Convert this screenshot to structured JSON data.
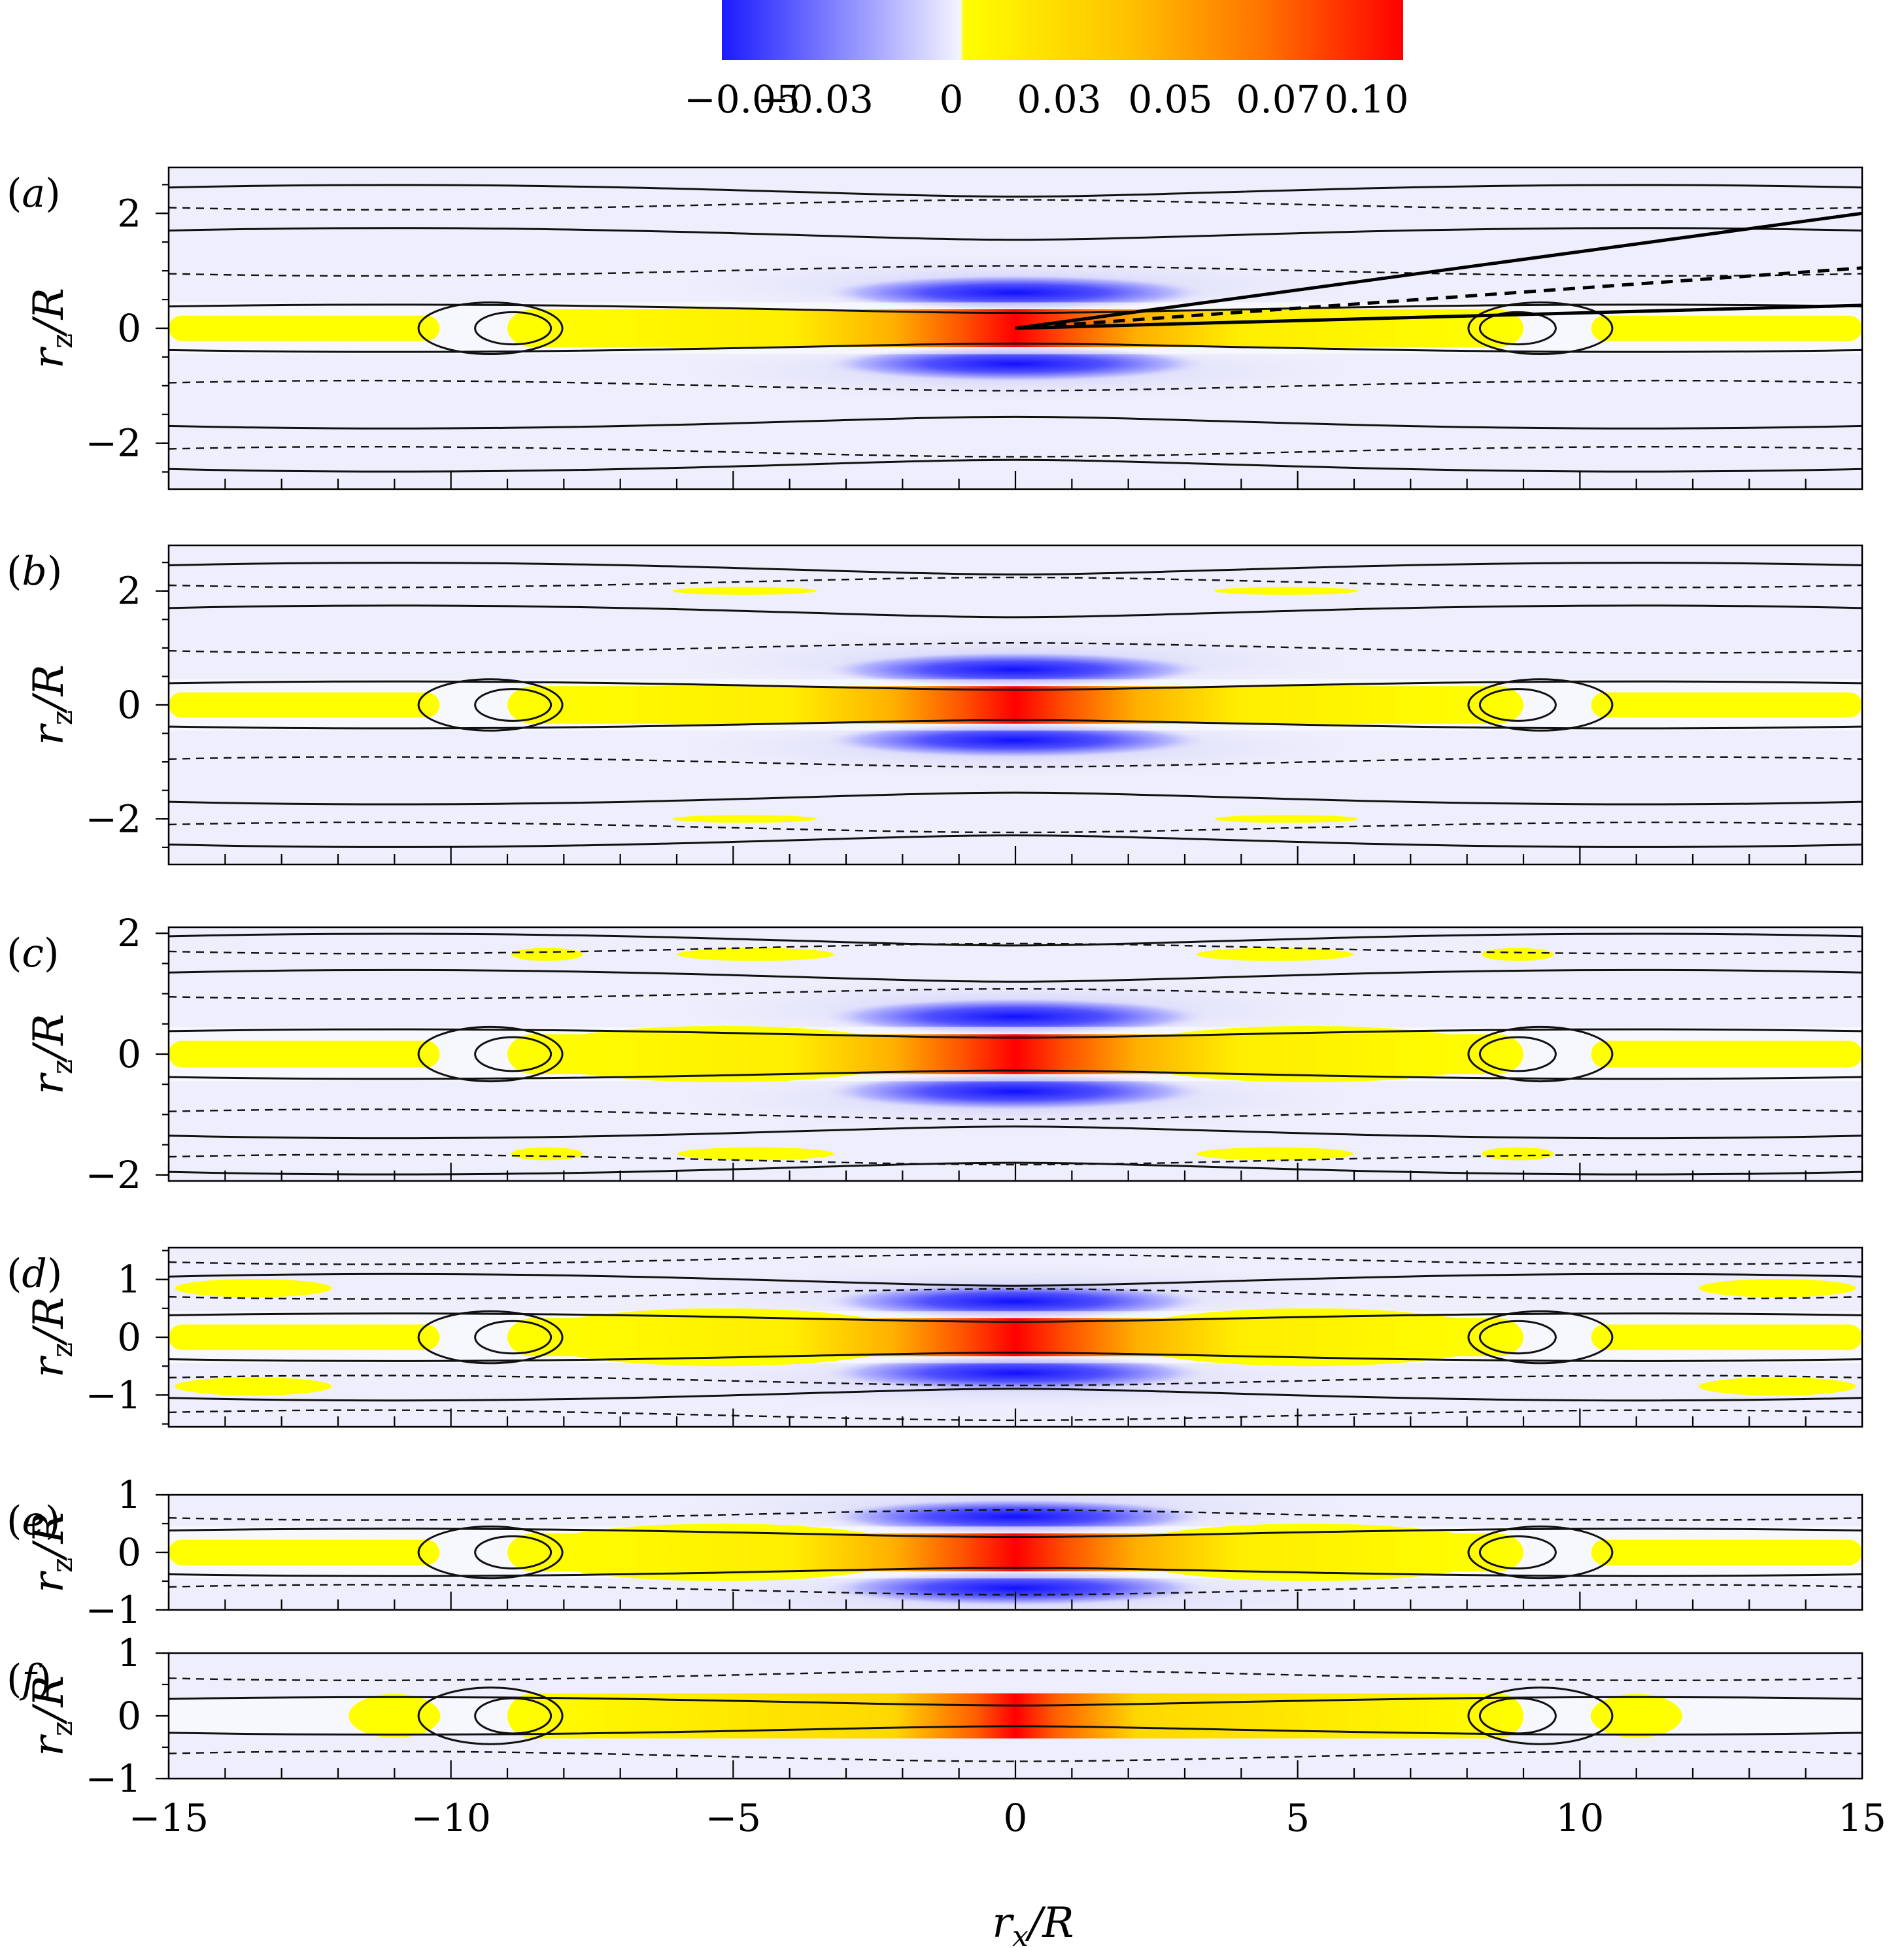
{
  "chart_data": {
    "type": "heatmap",
    "title": "",
    "colorbar": {
      "ticks": [
        "−0.05",
        "−0.03",
        "0",
        "0.03",
        "0.05",
        "0.07",
        "0.10"
      ],
      "range": [
        -0.05,
        0.1
      ],
      "colors": {
        "negative": "#1a1aff",
        "zero": "#ffffff",
        "low_positive": "#ffff00",
        "mid": "#ff8c00",
        "high": "#ff0000"
      }
    },
    "xlabel": "r_x/R",
    "xlabel_main": "r",
    "xlabel_sub": "x",
    "xlabel_tail": "/R",
    "ylabel_main": "r",
    "ylabel_sub": "z",
    "ylabel_tail": "/R",
    "xlim": [
      -15,
      15
    ],
    "xticks": [
      "−15",
      "−10",
      "−5",
      "0",
      "5",
      "10",
      "15"
    ],
    "panels": [
      {
        "label_open": "(",
        "label_letter": "a",
        "label_close": ")",
        "ylim": [
          -2.8,
          2.8
        ],
        "yticks": [
          "2",
          "0",
          "−2"
        ],
        "ytick_values": [
          2,
          0,
          -2
        ],
        "core_peak": 0.1,
        "side_negative": -0.05,
        "inclined_lines": true
      },
      {
        "label_open": "(",
        "label_letter": "b",
        "label_close": ")",
        "ylim": [
          -2.8,
          2.8
        ],
        "yticks": [
          "2",
          "0",
          "−2"
        ],
        "ytick_values": [
          2,
          0,
          -2
        ],
        "core_peak": 0.1,
        "side_negative": -0.05,
        "inclined_lines": false
      },
      {
        "label_open": "(",
        "label_letter": "c",
        "label_close": ")",
        "ylim": [
          -2.1,
          2.1
        ],
        "yticks": [
          "2",
          "0",
          "−2"
        ],
        "ytick_values": [
          2,
          0,
          -2
        ],
        "core_peak": 0.1,
        "side_negative": -0.05,
        "inclined_lines": false
      },
      {
        "label_open": "(",
        "label_letter": "d",
        "label_close": ")",
        "ylim": [
          -1.55,
          1.55
        ],
        "yticks": [
          "1",
          "0",
          "−1"
        ],
        "ytick_values": [
          1,
          0,
          -1
        ],
        "core_peak": 0.1,
        "side_negative": -0.05,
        "inclined_lines": false
      },
      {
        "label_open": "(",
        "label_letter": "e",
        "label_close": ")",
        "ylim": [
          -1.0,
          1.0
        ],
        "yticks": [
          "1",
          "0",
          "−1"
        ],
        "ytick_values": [
          1,
          0,
          -1
        ],
        "core_peak": 0.1,
        "side_negative": -0.05,
        "inclined_lines": false
      },
      {
        "label_open": "(",
        "label_letter": "f",
        "label_close": ")",
        "ylim": [
          -1.0,
          1.0
        ],
        "yticks": [
          "1",
          "0",
          "−1"
        ],
        "ytick_values": [
          1,
          0,
          -1
        ],
        "core_peak": 0.1,
        "side_negative": -0.01,
        "inclined_lines": false
      }
    ]
  }
}
